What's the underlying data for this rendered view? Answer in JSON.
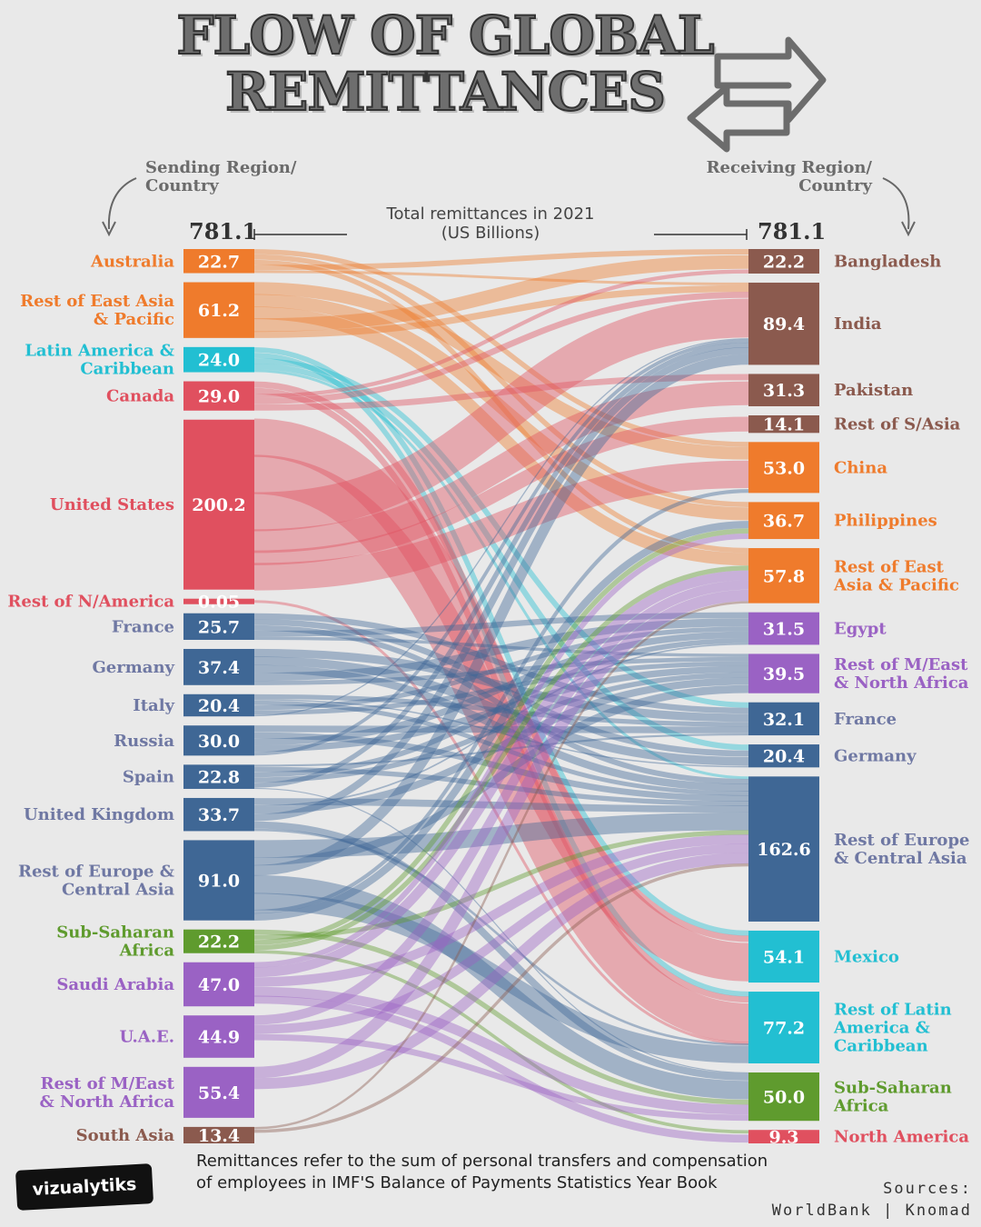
{
  "title": {
    "line1": "FLOW OF GLOBAL",
    "line2": "REMITTANCES"
  },
  "headers": {
    "sending": [
      "Sending Region/",
      "Country"
    ],
    "receiving": [
      "Receiving Region/",
      "Country"
    ]
  },
  "total_caption": [
    "Total remittances in 2021",
    "(US Billions)"
  ],
  "total_left": "781.1",
  "total_right": "781.1",
  "footnote": [
    "Remittances refer to the sum of personal transfers and compensation",
    "of employees in IMF'S Balance of Payments Statistics Year Book"
  ],
  "sources": [
    "Sources:",
    "WorldBank | Knomad"
  ],
  "logo": "vizualytiks",
  "colors": {
    "brown": "#8b5a4e",
    "orange": "#ef7b2c",
    "cyan": "#22bfd2",
    "red": "#e0505f",
    "blue": "#3f6795",
    "green": "#5f9b2e",
    "purple": "#9a62c4",
    "labelblue": "#6f78a3"
  },
  "chart_data": {
    "type": "sankey",
    "units": "US$ billions",
    "sources": [
      {
        "name": "Australia",
        "label": "22.7",
        "value": 22.7,
        "color": "orange"
      },
      {
        "name": "Rest of East Asia\n& Pacific",
        "label": "61.2",
        "value": 61.2,
        "color": "orange"
      },
      {
        "name": "Latin America &\nCaribbean",
        "label": "24.0",
        "value": 24.0,
        "color": "cyan"
      },
      {
        "name": "Canada",
        "label": "29.0",
        "value": 29.0,
        "color": "red"
      },
      {
        "name": "United States",
        "label": "200.2",
        "value": 200.2,
        "color": "red"
      },
      {
        "name": "Rest of N/America",
        "label": "0.05",
        "value": 0.05,
        "color": "red"
      },
      {
        "name": "France",
        "label": "25.7",
        "value": 25.7,
        "color": "blue"
      },
      {
        "name": "Germany",
        "label": "37.4",
        "value": 37.4,
        "color": "blue"
      },
      {
        "name": "Italy",
        "label": "20.4",
        "value": 20.4,
        "color": "blue"
      },
      {
        "name": "Russia",
        "label": "30.0",
        "value": 30.0,
        "color": "blue"
      },
      {
        "name": "Spain",
        "label": "22.8",
        "value": 22.8,
        "color": "blue"
      },
      {
        "name": "United Kingdom",
        "label": "33.7",
        "value": 33.7,
        "color": "blue"
      },
      {
        "name": "Rest of Europe &\nCentral Asia",
        "label": "91.0",
        "value": 91.0,
        "color": "blue"
      },
      {
        "name": "Sub-Saharan\nAfrica",
        "label": "22.2",
        "value": 22.2,
        "color": "green"
      },
      {
        "name": "Saudi Arabia",
        "label": "47.0",
        "value": 47.0,
        "color": "purple"
      },
      {
        "name": "U.A.E.",
        "label": "44.9",
        "value": 44.9,
        "color": "purple"
      },
      {
        "name": "Rest of M/East\n& North Africa",
        "label": "55.4",
        "value": 55.4,
        "color": "purple"
      },
      {
        "name": "South Asia",
        "label": "13.4",
        "value": 13.4,
        "color": "brown"
      }
    ],
    "targets": [
      {
        "name": "Bangladesh",
        "label": "22.2",
        "value": 22.2,
        "color": "brown"
      },
      {
        "name": "India",
        "label": "89.4",
        "value": 89.4,
        "color": "brown"
      },
      {
        "name": "Pakistan",
        "label": "31.3",
        "value": 31.3,
        "color": "brown"
      },
      {
        "name": "Rest of S/Asia",
        "label": "14.1",
        "value": 14.1,
        "color": "brown"
      },
      {
        "name": "China",
        "label": "53.0",
        "value": 53.0,
        "color": "orange"
      },
      {
        "name": "Philippines",
        "label": "36.7",
        "value": 36.7,
        "color": "orange"
      },
      {
        "name": "Rest of East\nAsia & Pacific",
        "label": "57.8",
        "value": 57.8,
        "color": "orange"
      },
      {
        "name": "Egypt",
        "label": "31.5",
        "value": 31.5,
        "color": "purple"
      },
      {
        "name": "Rest of M/East\n& North Africa",
        "label": "39.5",
        "value": 39.5,
        "color": "purple"
      },
      {
        "name": "France",
        "label": "32.1",
        "value": 32.1,
        "color": "blue"
      },
      {
        "name": "Germany",
        "label": "20.4",
        "value": 20.4,
        "color": "blue"
      },
      {
        "name": "Rest of Europe\n& Central Asia",
        "label": "162.6",
        "value": 162.6,
        "color": "blue"
      },
      {
        "name": "Mexico",
        "label": "54.1",
        "value": 54.1,
        "color": "cyan"
      },
      {
        "name": "Rest of Latin\nAmerica &\nCaribbean",
        "label": "77.2",
        "value": 77.2,
        "color": "cyan"
      },
      {
        "name": "Sub-Saharan\nAfrica",
        "label": "50.0",
        "value": 50.0,
        "color": "green"
      },
      {
        "name": "North America",
        "label": "9.3",
        "value": 9.3,
        "color": "red"
      }
    ]
  }
}
